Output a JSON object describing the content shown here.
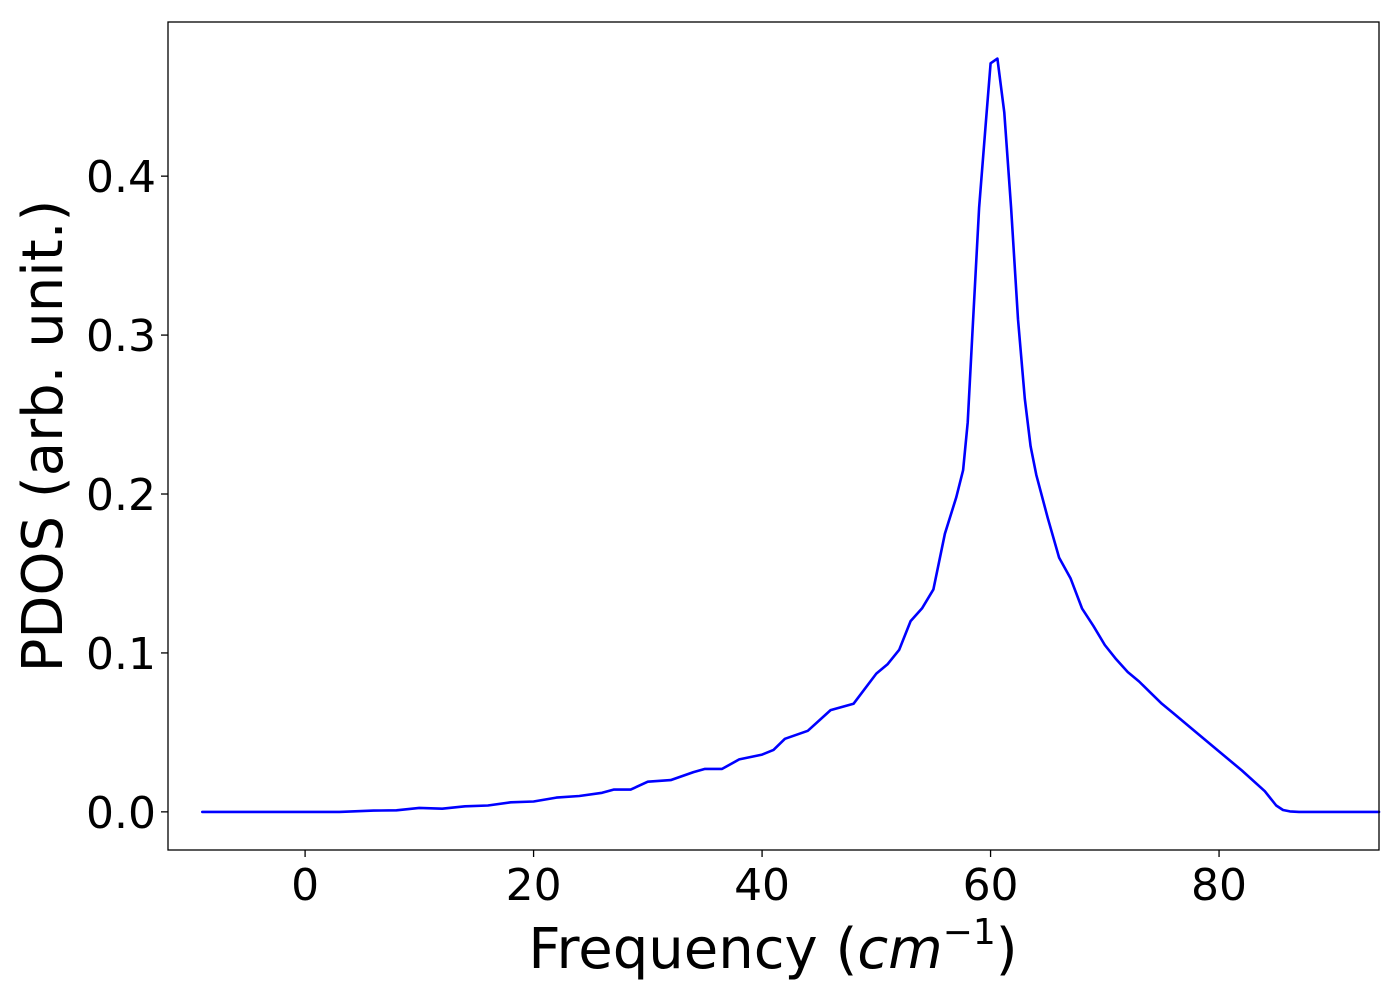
{
  "chart_data": {
    "type": "line",
    "title": "",
    "xlabel": "Frequency (",
    "xlabel_math": "cm",
    "xlabel_sup": "−1",
    "xlabel_close": ")",
    "ylabel": "PDOS (arb. unit.)",
    "xlim": [
      -12,
      94
    ],
    "ylim": [
      -0.024,
      0.497
    ],
    "x_ticks": [
      0,
      20,
      40,
      60,
      80
    ],
    "x_tick_labels": [
      "0",
      "20",
      "40",
      "60",
      "80"
    ],
    "y_ticks": [
      0.0,
      0.1,
      0.2,
      0.3,
      0.4
    ],
    "y_tick_labels": [
      "0.0",
      "0.1",
      "0.2",
      "0.3",
      "0.4"
    ],
    "grid": false,
    "legend": "none",
    "series": [
      {
        "color": "#0000ff",
        "x": [
          -9,
          0,
          3,
          6,
          8,
          10,
          12,
          14,
          16,
          18,
          20,
          22,
          24,
          26,
          27,
          28.5,
          30,
          32,
          34,
          35,
          36.5,
          38,
          40,
          41,
          42,
          44,
          46,
          48,
          50,
          51,
          52,
          53,
          54,
          55,
          56,
          57,
          57.6,
          58,
          58.4,
          59,
          59.6,
          60,
          60.6,
          61.2,
          61.8,
          62.4,
          63,
          63.5,
          64,
          65,
          66,
          67,
          68,
          69,
          70,
          71,
          72,
          73,
          74,
          75,
          76,
          78,
          80,
          82,
          84,
          85,
          85.6,
          86.2,
          87,
          88,
          90,
          94
        ],
        "y": [
          0.0,
          0.0,
          0.0,
          0.0008,
          0.001,
          0.0025,
          0.002,
          0.0035,
          0.004,
          0.006,
          0.0065,
          0.009,
          0.01,
          0.012,
          0.014,
          0.014,
          0.019,
          0.02,
          0.025,
          0.027,
          0.027,
          0.033,
          0.036,
          0.039,
          0.046,
          0.051,
          0.064,
          0.068,
          0.087,
          0.093,
          0.102,
          0.12,
          0.128,
          0.14,
          0.175,
          0.198,
          0.215,
          0.245,
          0.3,
          0.38,
          0.435,
          0.471,
          0.474,
          0.44,
          0.38,
          0.31,
          0.26,
          0.23,
          0.212,
          0.185,
          0.16,
          0.147,
          0.128,
          0.117,
          0.105,
          0.096,
          0.088,
          0.082,
          0.075,
          0.068,
          0.062,
          0.05,
          0.038,
          0.026,
          0.013,
          0.004,
          0.0012,
          0.0003,
          0.0,
          0.0,
          0.0,
          0.0
        ]
      }
    ]
  }
}
